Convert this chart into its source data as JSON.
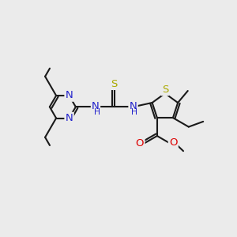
{
  "background_color": "#ebebeb",
  "bond_color": "#1a1a1a",
  "n_color": "#2222cc",
  "s_color": "#aaaa00",
  "o_color": "#dd0000",
  "line_width": 1.5,
  "font_size": 9.5,
  "figsize": [
    3.0,
    3.0
  ],
  "dpi": 100,
  "xlim": [
    0,
    10
  ],
  "ylim": [
    0,
    10
  ]
}
